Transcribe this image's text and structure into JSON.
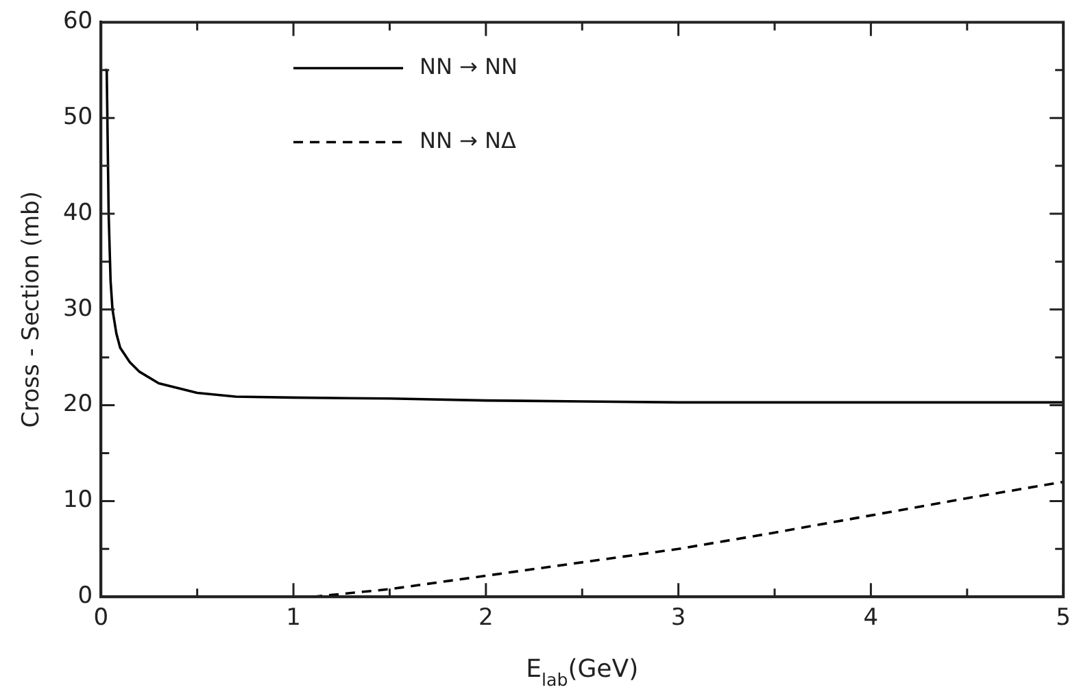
{
  "chart_data": {
    "type": "line",
    "xlabel": "E$_{lab}$(GeV)",
    "ylabel": "Cross - Section (mb)",
    "xlim": [
      0,
      5
    ],
    "xticks": [
      0,
      {
        "value": 0.5,
        "label": null
      },
      1,
      {
        "value": 1.5,
        "label": null
      },
      2,
      {
        "value": 2.5,
        "label": null
      },
      3,
      {
        "value": 3.5,
        "label": null
      },
      4,
      {
        "value": 4.5,
        "label": null
      },
      5
    ],
    "ylim": [
      0,
      60
    ],
    "yticks": [
      0,
      {
        "value": 5,
        "label": null
      },
      10,
      {
        "value": 15,
        "label": null
      },
      20,
      {
        "value": 25,
        "label": null
      },
      30,
      {
        "value": 35,
        "label": null
      },
      40,
      {
        "value": 45,
        "label": null
      },
      50,
      {
        "value": 55,
        "label": null
      },
      60
    ],
    "grid": false,
    "legend": "top left",
    "marker": "none",
    "series": [
      {
        "name": "NN → NN",
        "color": "#000000",
        "line_style": "solid",
        "x": [
          0.02,
          0.03,
          0.04,
          0.05,
          0.06,
          0.08,
          0.1,
          0.15,
          0.2,
          0.3,
          0.4,
          0.5,
          0.7,
          1,
          1.5,
          2,
          2.5,
          3,
          3.5,
          4,
          4.5,
          5
        ],
        "values": [
          55,
          55,
          40,
          33,
          30,
          27.5,
          26,
          24.5,
          23.5,
          22.3,
          21.8,
          21.3,
          20.9,
          20.8,
          20.7,
          20.5,
          20.4,
          20.3,
          20.3,
          20.3,
          20.3,
          20.3
        ]
      },
      {
        "name": "NN → NΔ",
        "color": "#000000",
        "line_style": "dashed",
        "x": [
          1.1,
          1.5,
          2,
          2.5,
          3,
          3.5,
          4,
          4.5,
          5
        ],
        "values": [
          0,
          0.8,
          2.2,
          3.6,
          5,
          6.7,
          8.5,
          10.3,
          12
        ]
      }
    ]
  }
}
